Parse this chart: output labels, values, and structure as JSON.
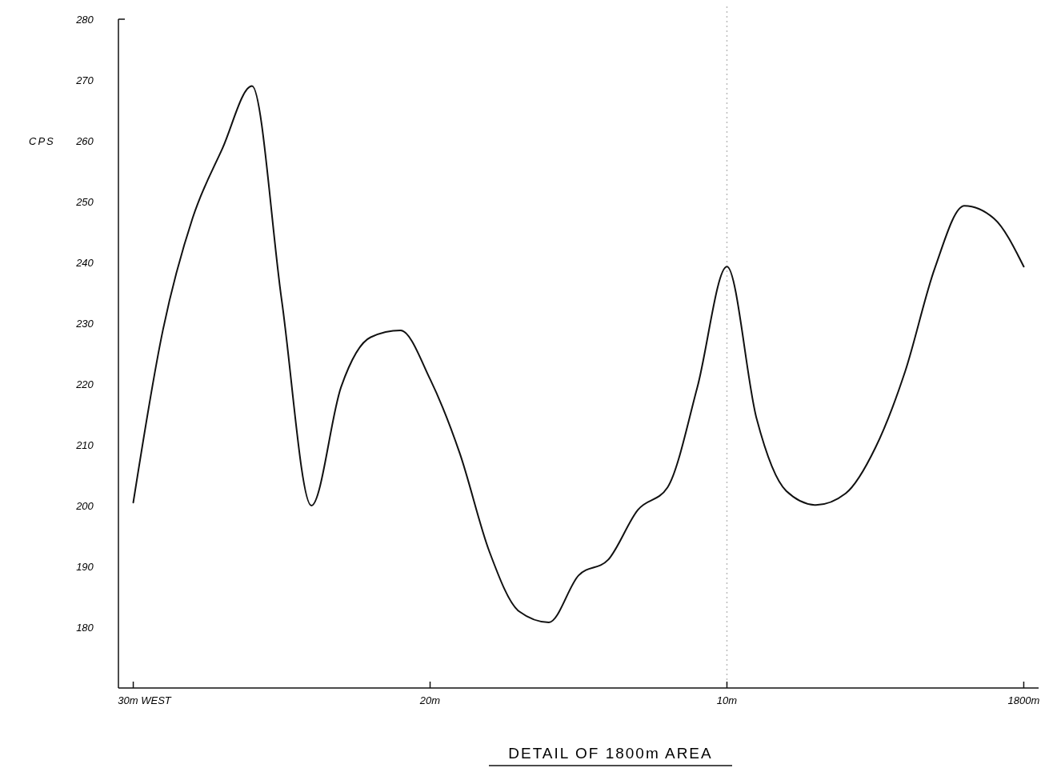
{
  "chart_data": {
    "type": "line",
    "title": "DETAIL OF 1800m AREA",
    "ylabel": "CPS",
    "categories": [
      "30m WEST",
      null,
      null,
      null,
      null,
      null,
      null,
      null,
      null,
      null,
      "20m",
      null,
      null,
      null,
      null,
      null,
      null,
      null,
      null,
      null,
      "10m",
      null,
      null,
      null,
      null,
      null,
      null,
      null,
      null,
      null,
      "1800m"
    ],
    "series": [
      {
        "color": "#111111",
        "values": [
          200.5,
          228.9,
          247.3,
          258.7,
          269,
          233.8,
          200,
          219.5,
          227.7,
          228.8,
          220.8,
          208.6,
          192.4,
          182.6,
          180.8,
          188.5,
          191.1,
          199.3,
          203,
          219.4,
          239.3,
          214.3,
          202.4,
          200.1,
          202,
          209.5,
          222,
          239,
          249.3,
          247.2,
          239.3
        ]
      }
    ],
    "ylim": [
      170,
      280
    ],
    "yticks": [
      180,
      190,
      200,
      210,
      220,
      230,
      240,
      250,
      260,
      270,
      280
    ],
    "ref_lines": [
      {
        "axis": "x",
        "value": "10m",
        "color": "#bbbbbb",
        "line_style": "dotted"
      }
    ],
    "grid": false,
    "marker": "none",
    "line_style": "solid"
  }
}
